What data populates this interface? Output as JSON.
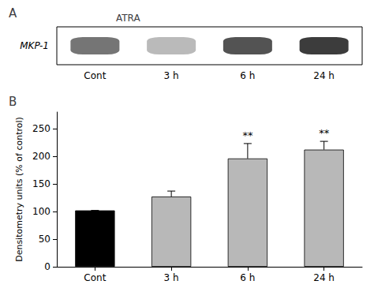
{
  "chart_data": [
    {
      "type": "blot",
      "title": "A",
      "categories": [
        "Cont",
        "3 h",
        "6 h",
        "24 h"
      ],
      "values": [
        0.6,
        0.3,
        0.75,
        0.85
      ],
      "annotations": [
        "ATRA",
        "MKP-1"
      ]
    },
    {
      "type": "bar",
      "title": "B",
      "categories": [
        "Cont",
        "3 h",
        "6 h",
        "24 h"
      ],
      "values": [
        102,
        127,
        196,
        212
      ],
      "errors": [
        0,
        10,
        27,
        15
      ],
      "colors": [
        "#000000",
        "#b8b8b8",
        "#b8b8b8",
        "#b8b8b8"
      ],
      "significance": [
        null,
        null,
        "**",
        "**"
      ],
      "ylabel": "Densitometry units (% of control)",
      "ylim": [
        0,
        280
      ],
      "yticks": [
        0,
        50,
        100,
        150,
        200,
        250
      ],
      "grid": false
    }
  ]
}
